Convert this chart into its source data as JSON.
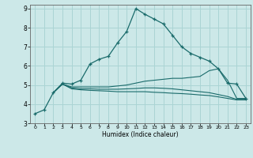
{
  "xlabel": "Humidex (Indice chaleur)",
  "bg_color": "#cce8e8",
  "grid_color": "#aad4d4",
  "line_color": "#1a6b6b",
  "xlim": [
    -0.5,
    23.5
  ],
  "ylim": [
    3,
    9.2
  ],
  "xticks": [
    0,
    1,
    2,
    3,
    4,
    5,
    6,
    7,
    8,
    9,
    10,
    11,
    12,
    13,
    14,
    15,
    16,
    17,
    18,
    19,
    20,
    21,
    22,
    23
  ],
  "yticks": [
    3,
    4,
    5,
    6,
    7,
    8,
    9
  ],
  "line1_x": [
    0,
    1,
    2,
    3,
    4,
    5,
    6,
    7,
    8,
    9,
    10,
    11,
    12,
    13,
    14,
    15,
    16,
    17,
    18,
    19,
    20,
    21,
    22,
    23
  ],
  "line1_y": [
    3.5,
    3.7,
    4.6,
    5.1,
    5.05,
    5.25,
    6.1,
    6.35,
    6.5,
    7.2,
    7.8,
    9.0,
    8.7,
    8.45,
    8.2,
    7.6,
    7.0,
    6.65,
    6.45,
    6.25,
    5.85,
    5.1,
    5.05,
    4.3
  ],
  "line2_x": [
    2,
    3,
    4,
    5,
    6,
    7,
    8,
    9,
    10,
    11,
    12,
    13,
    14,
    15,
    16,
    17,
    18,
    19,
    20,
    21,
    22,
    23
  ],
  "line2_y": [
    4.6,
    5.05,
    4.9,
    4.9,
    4.9,
    4.9,
    4.9,
    4.95,
    5.0,
    5.1,
    5.2,
    5.25,
    5.3,
    5.35,
    5.35,
    5.4,
    5.45,
    5.75,
    5.85,
    5.25,
    4.3,
    4.3
  ],
  "line3_x": [
    2,
    3,
    4,
    5,
    6,
    7,
    8,
    9,
    10,
    11,
    12,
    13,
    14,
    15,
    16,
    17,
    18,
    19,
    20,
    21,
    22,
    23
  ],
  "line3_y": [
    4.6,
    5.05,
    4.85,
    4.8,
    4.8,
    4.78,
    4.78,
    4.78,
    4.8,
    4.82,
    4.85,
    4.85,
    4.83,
    4.8,
    4.75,
    4.7,
    4.65,
    4.6,
    4.5,
    4.4,
    4.25,
    4.25
  ],
  "line4_x": [
    2,
    3,
    4,
    5,
    6,
    7,
    8,
    9,
    10,
    11,
    12,
    13,
    14,
    15,
    16,
    17,
    18,
    19,
    20,
    21,
    22,
    23
  ],
  "line4_y": [
    4.6,
    5.05,
    4.8,
    4.75,
    4.72,
    4.7,
    4.68,
    4.65,
    4.65,
    4.65,
    4.65,
    4.62,
    4.6,
    4.57,
    4.55,
    4.52,
    4.48,
    4.45,
    4.38,
    4.3,
    4.22,
    4.22
  ]
}
